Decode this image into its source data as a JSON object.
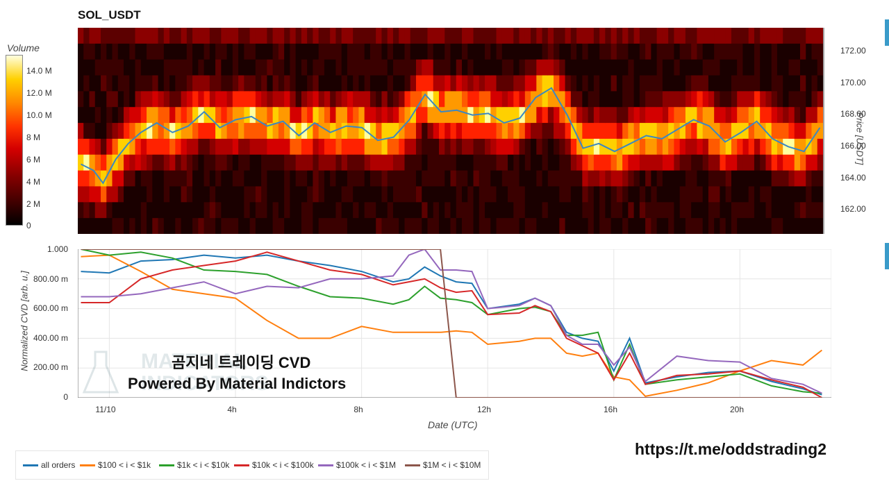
{
  "title": "SOL_USDT",
  "volume_colorbar": {
    "label": "Volume",
    "ticks": [
      "14.0 M",
      "12.0 M",
      "10.0 M",
      "8 M",
      "6 M",
      "4 M",
      "2 M",
      "0"
    ]
  },
  "price_axis": {
    "label": "Price [USDT]",
    "ticks": [
      "172.00",
      "170.00",
      "168.00",
      "166.00",
      "164.00",
      "162.00"
    ]
  },
  "cvd_axis": {
    "ylabel": "Normalized CVD [arb. u.]",
    "yticks": [
      "1.000",
      "800.00 m",
      "600.00 m",
      "400.00 m",
      "200.00 m",
      "0"
    ],
    "xlabel": "Date (UTC)",
    "xticks": [
      "11/10",
      "4h",
      "8h",
      "12h",
      "16h",
      "20h"
    ]
  },
  "watermark": {
    "line1": "곰지네 트레이딩 CVD",
    "line2": "Powered By Material Indictors",
    "logo_text": "MATERIAL INDICATORS"
  },
  "telegram_link": "https://t.me/oddstrading2",
  "legend": [
    {
      "label": "all orders",
      "color": "#1f77b4"
    },
    {
      "label": "$100 < i < $1k",
      "color": "#ff7f0e"
    },
    {
      "label": "$1k < i < $10k",
      "color": "#2ca02c"
    },
    {
      "label": "$10k < i < $100k",
      "color": "#d62728"
    },
    {
      "label": "$100k < i < $1M",
      "color": "#9467bd"
    },
    {
      "label": "$1M < i < $10M",
      "color": "#8c564b"
    }
  ],
  "chart_data": [
    {
      "type": "heatmap",
      "title": "SOL_USDT",
      "x_range_hours": [
        -1.0,
        22.6
      ],
      "y_label": "Price [USDT]",
      "y_range": [
        160.8,
        173.8
      ],
      "colorbar": "Volume",
      "price_line": {
        "x": [
          -0.9,
          -0.5,
          -0.2,
          0.2,
          0.6,
          1.0,
          1.5,
          2.0,
          2.5,
          3.0,
          3.5,
          4.0,
          4.5,
          5.0,
          5.5,
          6.0,
          6.5,
          7.0,
          7.5,
          8.0,
          8.5,
          9.0,
          9.5,
          10.0,
          10.5,
          11.0,
          11.5,
          12.0,
          12.5,
          13.0,
          13.5,
          14.0,
          14.5,
          15.0,
          15.5,
          16.0,
          16.5,
          17.0,
          17.5,
          18.0,
          18.5,
          19.0,
          19.5,
          20.0,
          20.5,
          21.0,
          21.5,
          22.0,
          22.5
        ],
        "y": [
          165.2,
          164.8,
          164.0,
          165.5,
          166.5,
          167.2,
          167.8,
          167.2,
          167.6,
          168.5,
          167.5,
          168.0,
          168.2,
          167.6,
          167.9,
          167.0,
          167.8,
          167.2,
          167.6,
          167.5,
          166.7,
          166.9,
          168.0,
          169.6,
          168.5,
          168.6,
          168.3,
          168.4,
          167.8,
          168.1,
          169.4,
          170.0,
          168.3,
          166.2,
          166.5,
          166.0,
          166.5,
          167.0,
          166.8,
          167.4,
          168.0,
          167.6,
          166.6,
          167.2,
          167.9,
          166.8,
          166.3,
          166.0,
          167.5
        ]
      }
    },
    {
      "type": "line",
      "xlabel": "Date (UTC)",
      "ylabel": "Normalized CVD [arb. u.]",
      "ylim": [
        0,
        1.0
      ],
      "x_hours": [
        -0.9,
        0,
        1,
        2,
        3,
        4,
        5,
        6,
        7,
        8,
        9,
        9.5,
        10,
        10.5,
        11,
        11.5,
        12,
        13,
        13.5,
        14,
        14.5,
        15,
        15.5,
        16,
        16.5,
        17,
        18,
        19,
        20,
        21,
        22,
        22.6
      ],
      "series": [
        {
          "name": "all orders",
          "values": [
            0.85,
            0.84,
            0.92,
            0.93,
            0.96,
            0.94,
            0.96,
            0.92,
            0.89,
            0.85,
            0.78,
            0.8,
            0.88,
            0.82,
            0.78,
            0.77,
            0.6,
            0.63,
            0.67,
            0.62,
            0.44,
            0.4,
            0.38,
            0.18,
            0.4,
            0.1,
            0.14,
            0.17,
            0.18,
            0.11,
            0.06,
            0.02
          ]
        },
        {
          "name": "$100 < i < $1k",
          "values": [
            0.95,
            0.96,
            0.85,
            0.73,
            0.7,
            0.67,
            0.52,
            0.4,
            0.4,
            0.48,
            0.44,
            0.44,
            0.44,
            0.44,
            0.45,
            0.44,
            0.36,
            0.38,
            0.4,
            0.4,
            0.3,
            0.28,
            0.3,
            0.14,
            0.12,
            0.01,
            0.05,
            0.1,
            0.18,
            0.25,
            0.22,
            0.32
          ]
        },
        {
          "name": "$1k < i < $10k",
          "values": [
            1.0,
            0.96,
            0.98,
            0.94,
            0.86,
            0.85,
            0.83,
            0.75,
            0.68,
            0.67,
            0.63,
            0.66,
            0.75,
            0.67,
            0.66,
            0.64,
            0.56,
            0.6,
            0.61,
            0.58,
            0.42,
            0.42,
            0.44,
            0.12,
            0.36,
            0.09,
            0.12,
            0.14,
            0.16,
            0.08,
            0.04,
            0.03
          ]
        },
        {
          "name": "$10k < i < $100k",
          "values": [
            0.64,
            0.64,
            0.8,
            0.86,
            0.89,
            0.92,
            0.98,
            0.92,
            0.86,
            0.83,
            0.76,
            0.78,
            0.8,
            0.74,
            0.71,
            0.72,
            0.56,
            0.57,
            0.62,
            0.58,
            0.4,
            0.35,
            0.3,
            0.12,
            0.3,
            0.09,
            0.15,
            0.16,
            0.18,
            0.12,
            0.07,
            0.0
          ]
        },
        {
          "name": "$100k < i < $1M",
          "values": [
            0.68,
            0.68,
            0.7,
            0.74,
            0.78,
            0.7,
            0.75,
            0.74,
            0.8,
            0.8,
            0.82,
            0.96,
            1.0,
            0.86,
            0.86,
            0.85,
            0.6,
            0.62,
            0.67,
            0.62,
            0.42,
            0.36,
            0.36,
            0.22,
            0.34,
            0.11,
            0.28,
            0.25,
            0.24,
            0.13,
            0.09,
            0.03
          ]
        },
        {
          "name": "$1M < i < $10M",
          "values": [
            1.0,
            1.0,
            1.0,
            1.0,
            1.0,
            1.0,
            1.0,
            1.0,
            1.0,
            1.0,
            1.0,
            1.0,
            1.0,
            1.0,
            0.0,
            0.0,
            0.0,
            0.0,
            0.0,
            0.0,
            0.0,
            0.0,
            0.0,
            0.0,
            0.0,
            0.0,
            0.0,
            0.0,
            0.0,
            0.0,
            0.0,
            0.0
          ]
        }
      ]
    }
  ]
}
